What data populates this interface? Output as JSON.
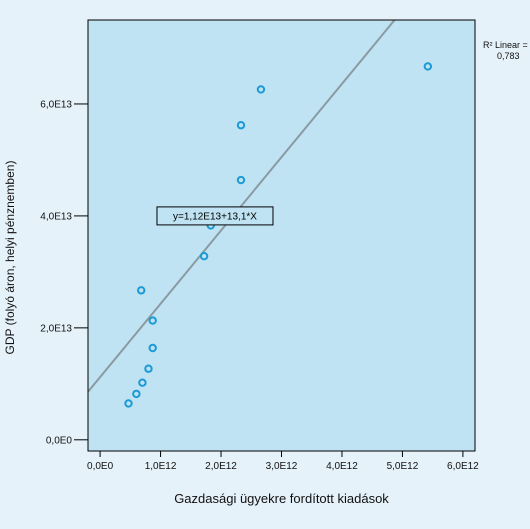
{
  "chart_data": {
    "type": "scatter",
    "title": "",
    "xlabel": "Gazdasági ügyekre fordított kiadások",
    "ylabel": "GDP (folyó áron, helyi pénznemben)",
    "xlim": [
      -200000000000.0,
      6200000000000.0
    ],
    "ylim": [
      -2000000000000.0,
      75000000000000.0
    ],
    "x_ticks": [
      {
        "value": 0,
        "label": "0,0E0"
      },
      {
        "value": 1000000000000.0,
        "label": "1,0E12"
      },
      {
        "value": 2000000000000.0,
        "label": "2,0E12"
      },
      {
        "value": 3000000000000.0,
        "label": "3,0E12"
      },
      {
        "value": 4000000000000.0,
        "label": "4,0E12"
      },
      {
        "value": 5000000000000.0,
        "label": "5,0E12"
      },
      {
        "value": 6000000000000.0,
        "label": "6,0E12"
      }
    ],
    "y_ticks": [
      {
        "value": 0,
        "label": "0,0E0"
      },
      {
        "value": 20000000000000.0,
        "label": "2,0E13"
      },
      {
        "value": 40000000000000.0,
        "label": "4,0E13"
      },
      {
        "value": 60000000000000.0,
        "label": "6,0E13"
      }
    ],
    "series": [
      {
        "points": [
          {
            "x": 470000000000.0,
            "y": 6500000000000.0
          },
          {
            "x": 600000000000.0,
            "y": 8200000000000.0
          },
          {
            "x": 700000000000.0,
            "y": 10200000000000.0
          },
          {
            "x": 800000000000.0,
            "y": 12700000000000.0
          },
          {
            "x": 870000000000.0,
            "y": 16400000000000.0
          },
          {
            "x": 870000000000.0,
            "y": 21300000000000.0
          },
          {
            "x": 680000000000.0,
            "y": 26700000000000.0
          },
          {
            "x": 1720000000000.0,
            "y": 32800000000000.0
          },
          {
            "x": 1830000000000.0,
            "y": 38300000000000.0
          },
          {
            "x": 2330000000000.0,
            "y": 46400000000000.0
          },
          {
            "x": 2330000000000.0,
            "y": 56200000000000.0
          },
          {
            "x": 2660000000000.0,
            "y": 62600000000000.0
          },
          {
            "x": 5420000000000.0,
            "y": 66700000000000.0
          }
        ],
        "color": "#1b9ad6"
      }
    ],
    "fit_line": {
      "intercept": 11200000000000.0,
      "slope": 13.1,
      "color": "#8a9aa2",
      "equation_label": "y=1,12E13+13,1*X",
      "equation_anchor": {
        "x": 1900000000000.0,
        "y": 40000000000000.0
      }
    },
    "r2_label_line1": "R² Linear =",
    "r2_label_line2": "0,783",
    "colors": {
      "plot_background": "#bfe3f2",
      "page_background": "#e6f2f9",
      "frame": "#000000",
      "marker": "#1b9ad6"
    },
    "grid": false
  }
}
